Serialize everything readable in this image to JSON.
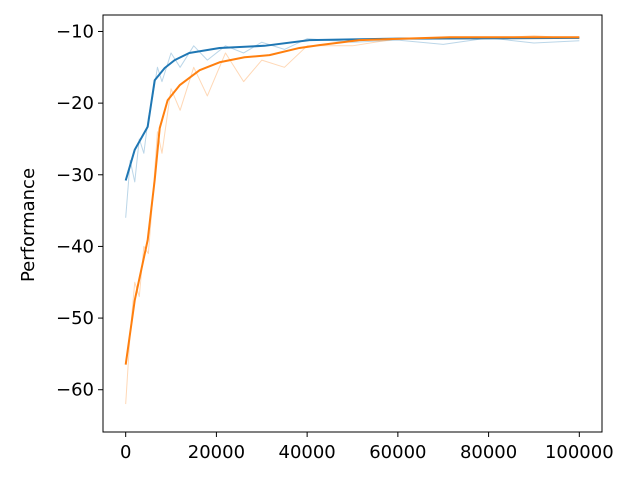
{
  "chart_data": {
    "type": "line",
    "y_label": "Performance",
    "xlim": [
      -5000,
      105000
    ],
    "ylim": [
      -65.9,
      -7.7
    ],
    "xticks": [
      0,
      20000,
      40000,
      60000,
      80000,
      100000
    ],
    "yticks": [
      {
        "value": -60,
        "label": "−60"
      },
      {
        "value": -50,
        "label": "−50"
      },
      {
        "value": -40,
        "label": "−40"
      },
      {
        "value": -30,
        "label": "−30"
      },
      {
        "value": -20,
        "label": "−20"
      },
      {
        "value": -10,
        "label": "−10"
      }
    ],
    "series": [
      {
        "color": "#1f77b4",
        "alpha": 0.3,
        "width": 1,
        "x": [
          0,
          1000,
          2000,
          3000,
          4000,
          5000,
          6000,
          7000,
          8000,
          10000,
          12000,
          15000,
          18000,
          22000,
          26000,
          30000,
          35000,
          40000,
          50000,
          60000,
          70000,
          80000,
          90000,
          100000
        ],
        "values": [
          -36,
          -28,
          -31,
          -25,
          -27,
          -22,
          -19,
          -15,
          -17,
          -13,
          -15,
          -12,
          -14,
          -12,
          -13,
          -11.5,
          -12.5,
          -11,
          -11.5,
          -11.2,
          -11.8,
          -10.9,
          -11.6,
          -11.3
        ]
      },
      {
        "color": "#ff7f0e",
        "alpha": 0.3,
        "width": 1,
        "x": [
          0,
          1000,
          2000,
          3000,
          4000,
          5000,
          6000,
          7000,
          8000,
          10000,
          12000,
          15000,
          18000,
          22000,
          26000,
          30000,
          35000,
          40000,
          50000,
          60000,
          70000,
          80000,
          90000,
          100000
        ],
        "values": [
          -62,
          -52,
          -45,
          -47,
          -40,
          -41,
          -33,
          -24,
          -27,
          -18,
          -21,
          -15,
          -19,
          -13,
          -17,
          -14,
          -15,
          -12,
          -12,
          -11,
          -11,
          -11,
          -10.6,
          -11
        ]
      },
      {
        "color": "#1f77b4",
        "alpha": 1,
        "width": 2,
        "x": [
          0,
          2000,
          4850,
          6400,
          8600,
          10800,
          14000,
          20700,
          30600,
          40500,
          60300,
          100000
        ],
        "values": [
          -30.8,
          -26.5,
          -23.3,
          -16.8,
          -15.1,
          -14,
          -13,
          -12.3,
          -12,
          -11.2,
          -11,
          -10.9
        ]
      },
      {
        "color": "#ff7f0e",
        "alpha": 1,
        "width": 2,
        "x": [
          0,
          2000,
          4850,
          6400,
          7500,
          9250,
          11900,
          16300,
          20700,
          26200,
          31700,
          38300,
          42700,
          51500,
          71400,
          100000
        ],
        "values": [
          -56.5,
          -47.5,
          -39.1,
          -30.7,
          -23.5,
          -19.6,
          -17.5,
          -15.4,
          -14.3,
          -13.6,
          -13.3,
          -12.3,
          -11.9,
          -11.2,
          -10.8,
          -10.8
        ]
      }
    ]
  }
}
